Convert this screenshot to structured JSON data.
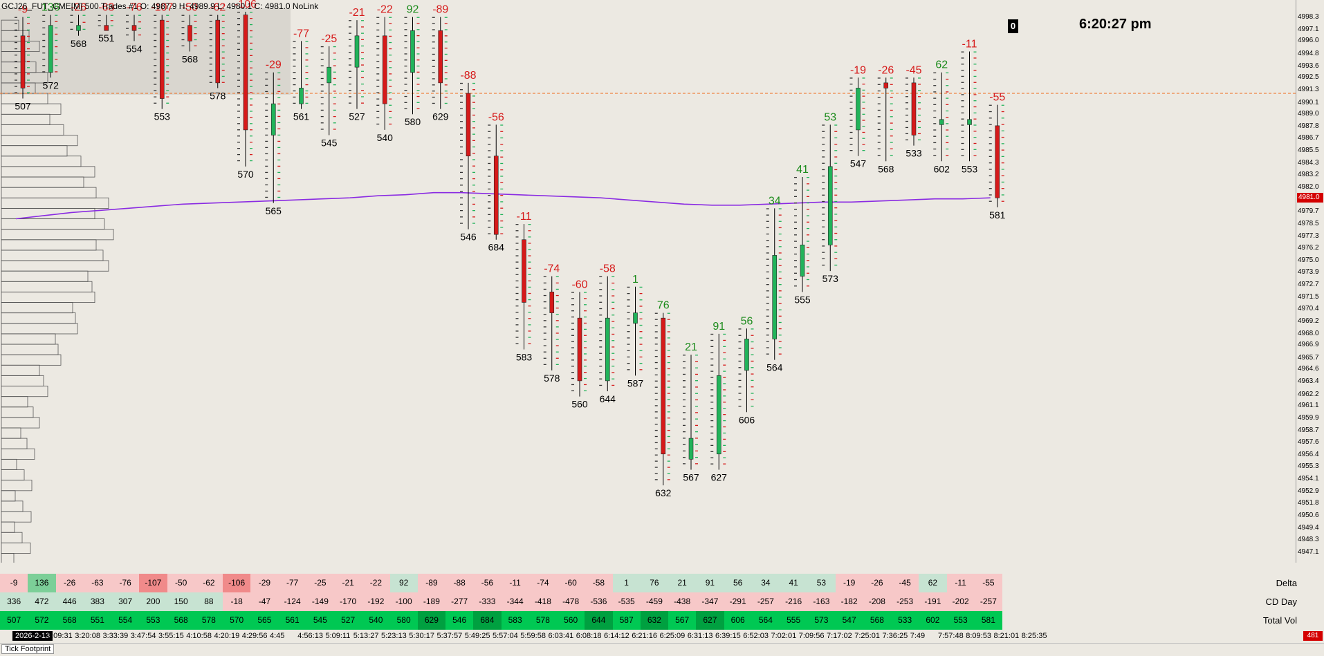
{
  "header": {
    "title": "GCJ26_FUT_CME[M]  500 Trades #1 O: 4987.9 H: 4989.9 L: 4980.1 C: 4981.0 NoLink",
    "clock": "6:20:27 pm",
    "badge": "0"
  },
  "price_axis": {
    "ticks": [
      "4998.3",
      "4997.1",
      "4996.0",
      "4994.8",
      "4993.6",
      "4992.5",
      "4991.3",
      "4990.1",
      "4989.0",
      "4987.8",
      "4986.7",
      "4985.5",
      "4984.3",
      "4983.2",
      "4982.0",
      "4980.8",
      "4979.7",
      "4978.5",
      "4977.3",
      "4976.2",
      "4975.0",
      "4973.9",
      "4972.7",
      "4971.5",
      "4970.4",
      "4969.2",
      "4968.0",
      "4966.9",
      "4965.7",
      "4964.6",
      "4963.4",
      "4962.2",
      "4961.1",
      "4959.9",
      "4958.7",
      "4957.6",
      "4956.4",
      "4955.3",
      "4954.1",
      "4952.9",
      "4951.8",
      "4950.6",
      "4949.4",
      "4948.3",
      "4947.1"
    ],
    "current_price": "4981.0",
    "price_max": 4999.0,
    "price_min": 4946.5
  },
  "colors": {
    "bull": "#21b35a",
    "bear": "#d61a1a",
    "vwap": "#8a2be2",
    "pos_delta": "#1a8a1a",
    "neg_delta": "#d61a1a",
    "total_vol": "#00c853",
    "cd_pos": "#c7e3d2",
    "cd_neg": "#f7c8c8"
  },
  "chart_data": {
    "type": "candlestick",
    "x_labels": [
      "3:09:31",
      "3:20:08",
      "3:33:39",
      "3:47:54",
      "3:55:15",
      "4:10:58",
      "4:20:19",
      "4:29:56",
      "4:45",
      "4:56:13",
      "5:09:11",
      "5:13:27",
      "5:23:13",
      "5:30:17",
      "5:37:57",
      "5:49:25",
      "5:57:04",
      "5:59:58",
      "6:03:41",
      "6:08:18",
      "6:14:12",
      "6:21:16",
      "6:25:09",
      "6:31:13",
      "6:39:15",
      "6:52:03",
      "7:02:01",
      "7:09:56",
      "7:17:02",
      "7:25:01",
      "7:36:25",
      "7:49",
      "7:57:48",
      "8:09:53",
      "8:21:01",
      "8:25:35"
    ],
    "date_label": "2026-2-13",
    "bars": [
      {
        "o": 4996.5,
        "h": 4998.3,
        "l": 4990.5,
        "c": 4991.5,
        "delta": -9,
        "vol": 507
      },
      {
        "o": 4993.0,
        "h": 4998.5,
        "l": 4992.5,
        "c": 4997.5,
        "delta": 136,
        "vol": 572
      },
      {
        "o": 4997.0,
        "h": 4998.5,
        "l": 4996.5,
        "c": 4997.5,
        "delta": -26,
        "vol": 568
      },
      {
        "o": 4997.5,
        "h": 4998.5,
        "l": 4997.0,
        "c": 4997.0,
        "delta": -63,
        "vol": 551
      },
      {
        "o": 4997.5,
        "h": 4998.5,
        "l": 4996.0,
        "c": 4997.0,
        "delta": -76,
        "vol": 554
      },
      {
        "o": 4998.0,
        "h": 4998.5,
        "l": 4989.5,
        "c": 4990.5,
        "delta": -107,
        "vol": 553
      },
      {
        "o": 4997.5,
        "h": 4998.5,
        "l": 4995.0,
        "c": 4996.0,
        "delta": -50,
        "vol": 568
      },
      {
        "o": 4998.0,
        "h": 4998.5,
        "l": 4991.5,
        "c": 4992.0,
        "delta": -62,
        "vol": 578
      },
      {
        "o": 4998.5,
        "h": 4998.8,
        "l": 4984.0,
        "c": 4987.5,
        "delta": -106,
        "vol": 570
      },
      {
        "o": 4987.0,
        "h": 4993.0,
        "l": 4980.5,
        "c": 4990.0,
        "delta": -29,
        "vol": 565
      },
      {
        "o": 4990.0,
        "h": 4996.0,
        "l": 4989.5,
        "c": 4991.5,
        "delta": -77,
        "vol": 561
      },
      {
        "o": 4992.0,
        "h": 4995.5,
        "l": 4987.0,
        "c": 4993.5,
        "delta": -25,
        "vol": 545
      },
      {
        "o": 4993.5,
        "h": 4998.0,
        "l": 4989.5,
        "c": 4996.5,
        "delta": -21,
        "vol": 527
      },
      {
        "o": 4996.5,
        "h": 4998.3,
        "l": 4987.5,
        "c": 4990.0,
        "delta": -22,
        "vol": 540
      },
      {
        "o": 4993.0,
        "h": 4998.3,
        "l": 4989.0,
        "c": 4997.0,
        "delta": 92,
        "vol": 580
      },
      {
        "o": 4997.0,
        "h": 4998.3,
        "l": 4989.5,
        "c": 4992.0,
        "delta": -89,
        "vol": 629
      },
      {
        "o": 4991.0,
        "h": 4992.0,
        "l": 4978.0,
        "c": 4985.0,
        "delta": -88,
        "vol": 546
      },
      {
        "o": 4985.0,
        "h": 4988.0,
        "l": 4977.0,
        "c": 4977.5,
        "delta": -56,
        "vol": 684
      },
      {
        "o": 4977.0,
        "h": 4978.5,
        "l": 4966.5,
        "c": 4971.0,
        "delta": -11,
        "vol": 583
      },
      {
        "o": 4972.0,
        "h": 4973.5,
        "l": 4964.5,
        "c": 4970.0,
        "delta": -74,
        "vol": 578
      },
      {
        "o": 4969.5,
        "h": 4972.0,
        "l": 4962.0,
        "c": 4963.5,
        "delta": -60,
        "vol": 560
      },
      {
        "o": 4963.5,
        "h": 4973.5,
        "l": 4962.5,
        "c": 4969.5,
        "delta": -58,
        "vol": 644
      },
      {
        "o": 4969.0,
        "h": 4972.5,
        "l": 4964.0,
        "c": 4970.0,
        "delta": 1,
        "vol": 587
      },
      {
        "o": 4969.5,
        "h": 4970.0,
        "l": 4953.5,
        "c": 4956.5,
        "delta": 76,
        "vol": 632
      },
      {
        "o": 4956.0,
        "h": 4966.0,
        "l": 4955.0,
        "c": 4958.0,
        "delta": 21,
        "vol": 567
      },
      {
        "o": 4956.5,
        "h": 4968.0,
        "l": 4955.0,
        "c": 4964.0,
        "delta": 91,
        "vol": 627
      },
      {
        "o": 4964.5,
        "h": 4968.5,
        "l": 4960.5,
        "c": 4967.5,
        "delta": 56,
        "vol": 606
      },
      {
        "o": 4967.5,
        "h": 4980.0,
        "l": 4965.5,
        "c": 4975.5,
        "delta": 34,
        "vol": 564
      },
      {
        "o": 4973.5,
        "h": 4983.0,
        "l": 4972.0,
        "c": 4976.5,
        "delta": 41,
        "vol": 555
      },
      {
        "o": 4976.5,
        "h": 4988.0,
        "l": 4974.0,
        "c": 4984.0,
        "delta": 53,
        "vol": 573
      },
      {
        "o": 4987.5,
        "h": 4992.5,
        "l": 4985.0,
        "c": 4991.5,
        "delta": -19,
        "vol": 547
      },
      {
        "o": 4992.0,
        "h": 4992.5,
        "l": 4984.5,
        "c": 4991.5,
        "delta": -26,
        "vol": 568
      },
      {
        "o": 4992.0,
        "h": 4992.5,
        "l": 4986.0,
        "c": 4987.0,
        "delta": -45,
        "vol": 533
      },
      {
        "o": 4988.0,
        "h": 4993.0,
        "l": 4984.5,
        "c": 4988.5,
        "delta": 62,
        "vol": 602
      },
      {
        "o": 4988.0,
        "h": 4995.0,
        "l": 4984.5,
        "c": 4988.5,
        "delta": -11,
        "vol": 553
      },
      {
        "o": 4987.9,
        "h": 4989.9,
        "l": 4980.1,
        "c": 4981.0,
        "delta": -55,
        "vol": 581
      }
    ],
    "vwap": [
      4979.0,
      4979.3,
      4979.6,
      4979.8,
      4980.0,
      4980.2,
      4980.4,
      4980.5,
      4980.6,
      4980.7,
      4980.8,
      4980.9,
      4981.0,
      4981.2,
      4981.3,
      4981.5,
      4981.5,
      4981.4,
      4981.3,
      4981.2,
      4981.1,
      4981.0,
      4980.8,
      4980.6,
      4980.4,
      4980.3,
      4980.3,
      4980.4,
      4980.5,
      4980.6,
      4980.6,
      4980.7,
      4980.8,
      4980.9,
      4980.9,
      4981.0
    ],
    "prior_close": 4991.0
  },
  "table": {
    "labels": {
      "delta": "Delta",
      "cd": "CD Day",
      "vol": "Total Vol"
    },
    "delta": [
      "-9",
      "136",
      "-26",
      "-63",
      "-76",
      "-107",
      "-50",
      "-62",
      "-106",
      "-29",
      "-77",
      "-25",
      "-21",
      "-22",
      "92",
      "-89",
      "-88",
      "-56",
      "-11",
      "-74",
      "-60",
      "-58",
      "1",
      "76",
      "21",
      "91",
      "56",
      "34",
      "41",
      "53",
      "-19",
      "-26",
      "-45",
      "62",
      "-11",
      "-55"
    ],
    "cd": [
      "336",
      "472",
      "446",
      "383",
      "307",
      "200",
      "150",
      "88",
      "-18",
      "-47",
      "-124",
      "-149",
      "-170",
      "-192",
      "-100",
      "-189",
      "-277",
      "-333",
      "-344",
      "-418",
      "-478",
      "-536",
      "-535",
      "-459",
      "-438",
      "-347",
      "-291",
      "-257",
      "-216",
      "-163",
      "-182",
      "-208",
      "-253",
      "-191",
      "-202",
      "-257"
    ],
    "vol": [
      "507",
      "572",
      "568",
      "551",
      "554",
      "553",
      "568",
      "578",
      "570",
      "565",
      "561",
      "545",
      "527",
      "540",
      "580",
      "629",
      "546",
      "684",
      "583",
      "578",
      "560",
      "644",
      "587",
      "632",
      "567",
      "627",
      "606",
      "564",
      "555",
      "573",
      "547",
      "568",
      "533",
      "602",
      "553",
      "581"
    ]
  },
  "footer": {
    "tab": "Tick Footprint",
    "corner": "481"
  }
}
